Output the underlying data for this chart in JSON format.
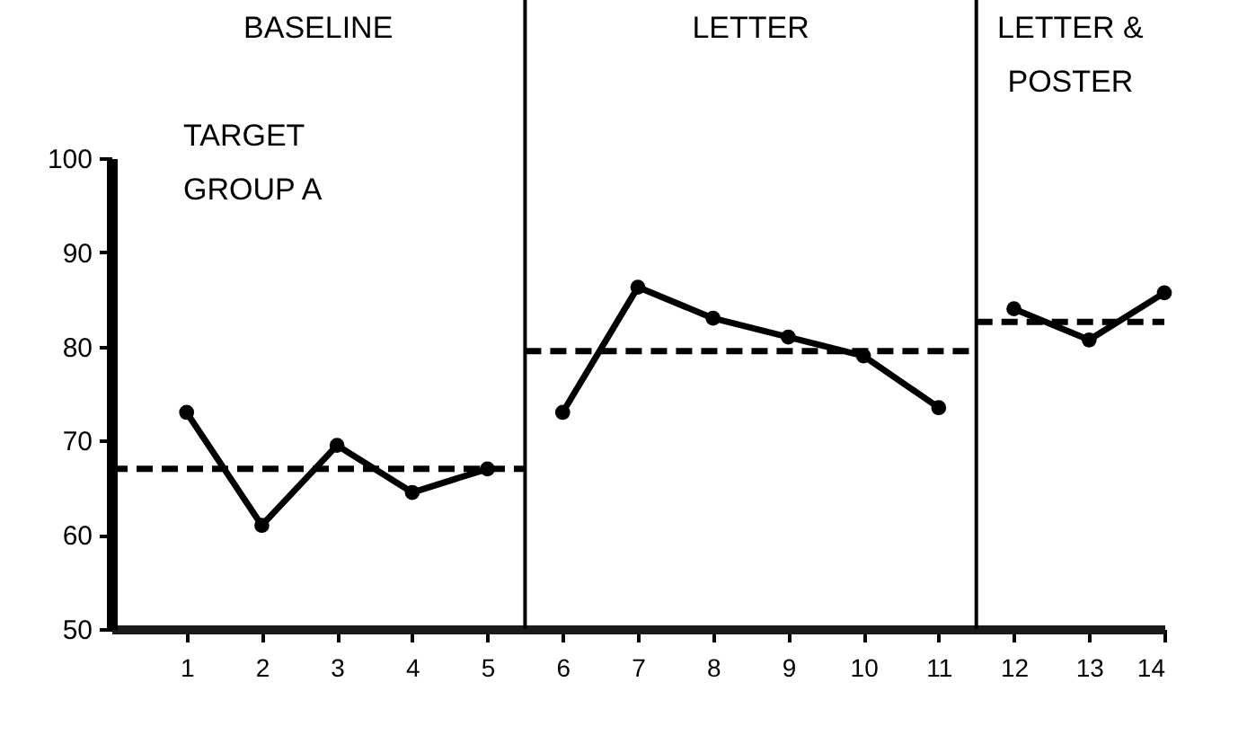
{
  "chart_data": {
    "type": "line",
    "marker": "circle",
    "line_style": "solid",
    "xlim": [
      0,
      14
    ],
    "xticks": [
      1,
      2,
      3,
      4,
      5,
      6,
      7,
      8,
      9,
      10,
      11,
      12,
      13,
      14
    ],
    "ylim": [
      50,
      100
    ],
    "yticks": [
      50,
      60,
      70,
      80,
      90,
      100
    ],
    "series": [
      {
        "color": "#000000",
        "x": [
          1,
          2,
          3,
          4,
          5
        ],
        "values": [
          73,
          61,
          69.5,
          64.5,
          67
        ]
      },
      {
        "color": "#000000",
        "x": [
          6,
          7,
          8,
          9,
          10,
          11
        ],
        "values": [
          73,
          86.3,
          83,
          81,
          79,
          73.5
        ]
      },
      {
        "color": "#000000",
        "x": [
          12,
          13,
          14
        ],
        "values": [
          84,
          80.7,
          85.7
        ]
      },
      {
        "color": "#000000",
        "type": "line",
        "line_style": "dashed",
        "marker": "none",
        "x": [
          0,
          5.5
        ],
        "values": [
          67,
          67
        ]
      },
      {
        "color": "#000000",
        "type": "line",
        "line_style": "dashed",
        "marker": "none",
        "x": [
          5.5,
          11.5
        ],
        "values": [
          79.5,
          79.5
        ]
      },
      {
        "color": "#000000",
        "type": "line",
        "line_style": "dashed",
        "marker": "none",
        "x": [
          11.5,
          14
        ],
        "values": [
          82.6,
          82.6
        ]
      }
    ],
    "ref_lines": [
      {
        "axis": "x",
        "value": 5.5
      },
      {
        "axis": "x",
        "value": 11.5
      }
    ],
    "annotations": [
      "BASELINE",
      "LETTER",
      "LETTER &\nPOSTER",
      "TARGET\nGROUP  A"
    ]
  }
}
